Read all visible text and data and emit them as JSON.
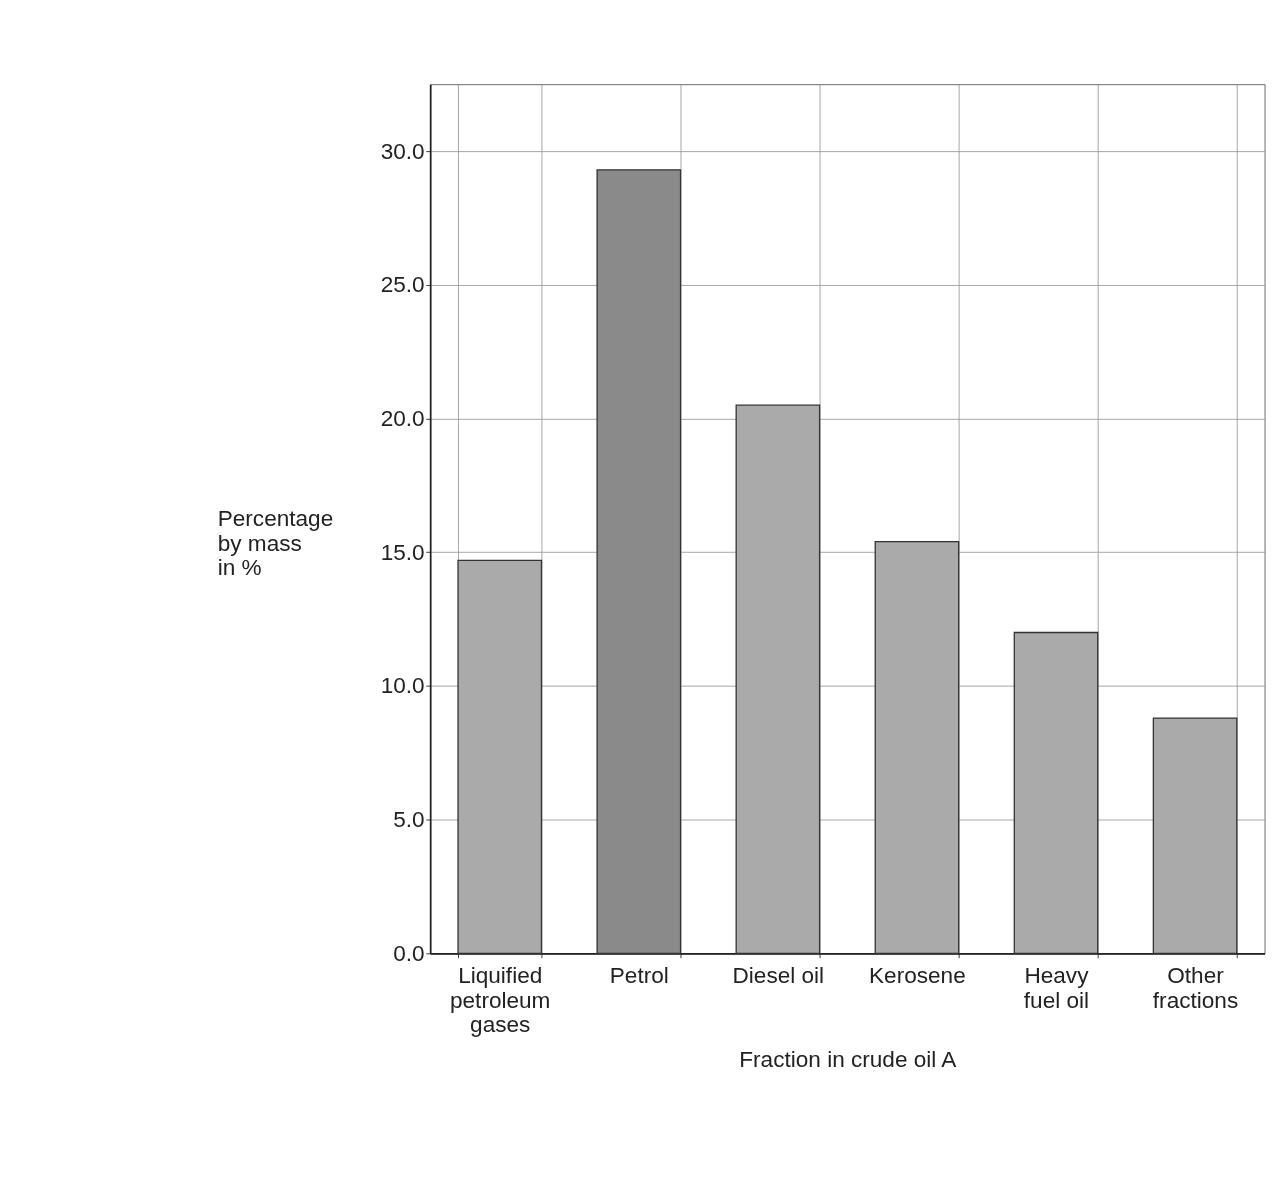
{
  "chart_data": {
    "type": "bar",
    "xlabel": "Fraction in crude oil A",
    "ylabel": "Percentage\nby mass\nin %",
    "categories": [
      "Liquified\npetroleum\ngases",
      "Petrol",
      "Diesel oil",
      "Kerosene",
      "Heavy\nfuel oil",
      "Other\nfractions"
    ],
    "values": [
      14.7,
      29.3,
      20.5,
      15.4,
      12.0,
      8.8
    ],
    "colors": [
      "#aaaaaa",
      "#8a8a8a",
      "#aaaaaa",
      "#aaaaaa",
      "#aaaaaa",
      "#aaaaaa"
    ],
    "ylim": [
      0,
      32.5
    ],
    "yticks": [
      {
        "value": 0,
        "label": "0.0"
      },
      {
        "value": 5,
        "label": "5.0"
      },
      {
        "value": 10,
        "label": "10.0"
      },
      {
        "value": 15,
        "label": "15.0"
      },
      {
        "value": 20,
        "label": "20.0"
      },
      {
        "value": 25,
        "label": "25.0"
      },
      {
        "value": 30,
        "label": "30.0"
      }
    ],
    "grid": true
  }
}
